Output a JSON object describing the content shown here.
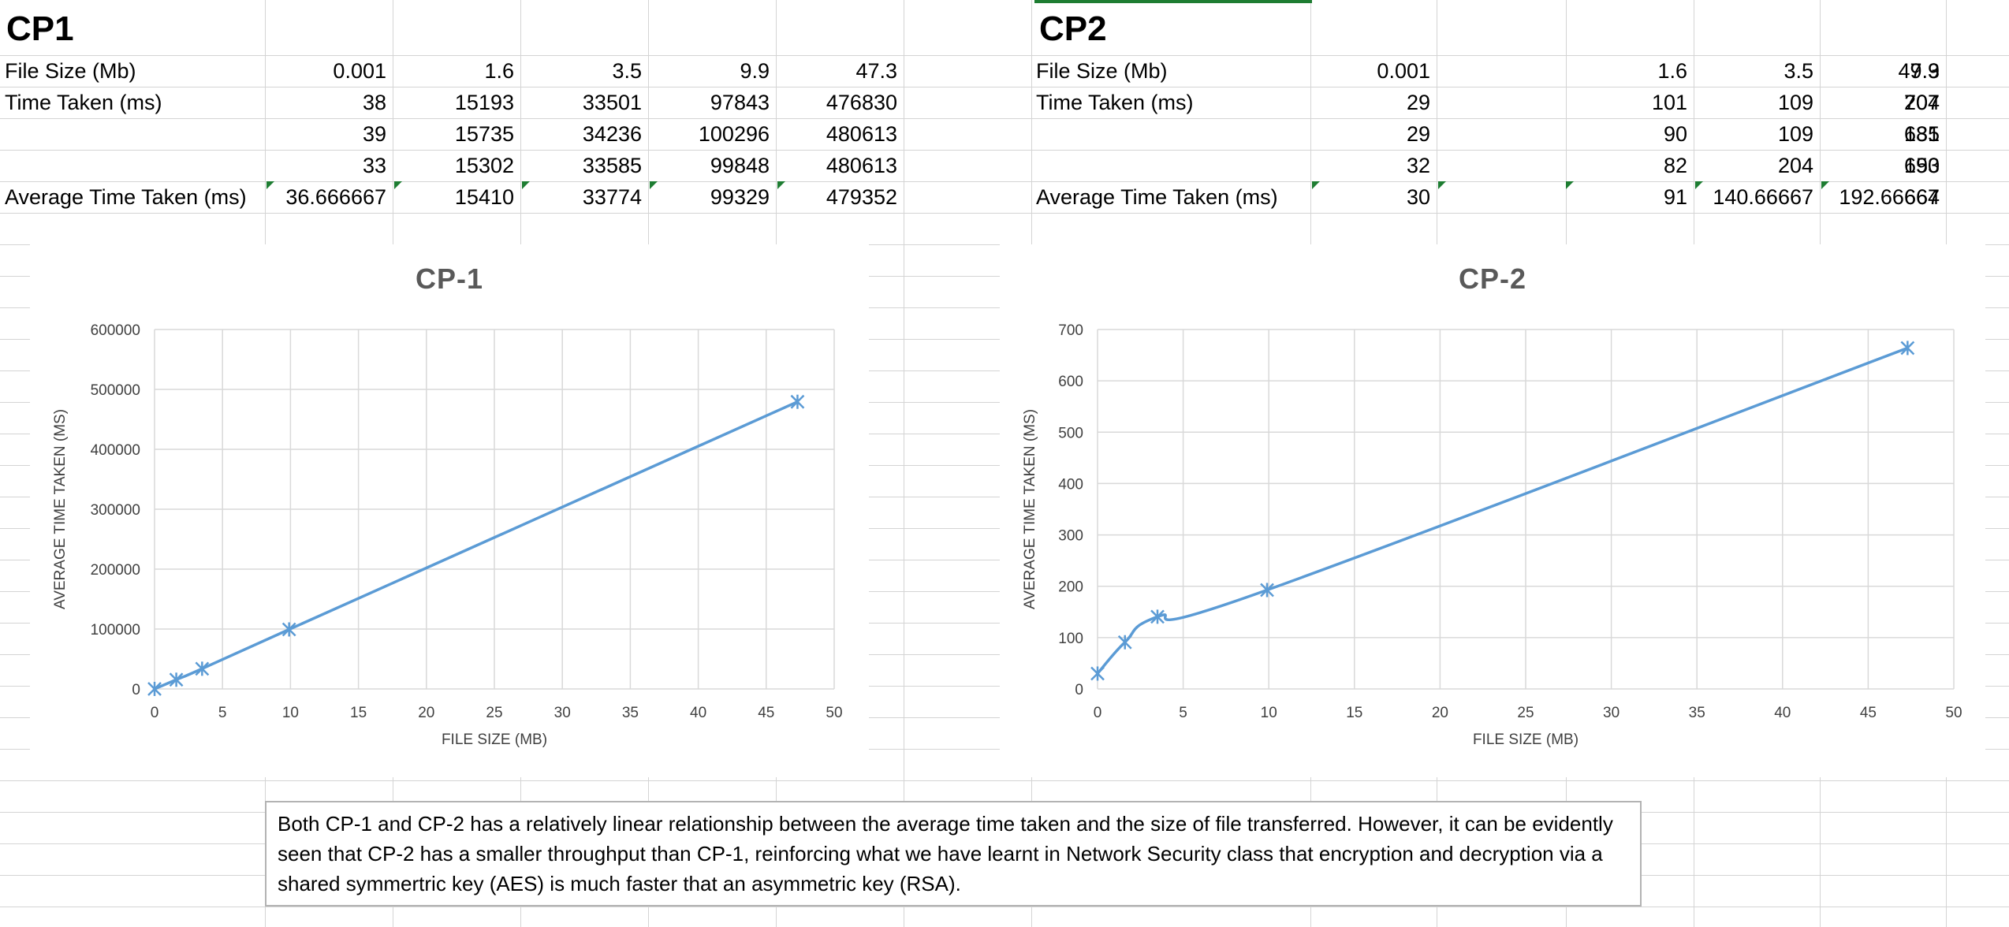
{
  "sheet": {
    "cp1": {
      "title": "CP1",
      "file_size_label": "File Size (Mb)",
      "time_label": "Time Taken (ms)",
      "avg_label": "Average Time Taken (ms)",
      "file_sizes": [
        "0.001",
        "1.6",
        "3.5",
        "9.9",
        "47.3"
      ],
      "time_rows": [
        [
          "38",
          "15193",
          "33501",
          "97843",
          "476830"
        ],
        [
          "39",
          "15735",
          "34236",
          "100296",
          "480613"
        ],
        [
          "33",
          "15302",
          "33585",
          "99848",
          "480613"
        ]
      ],
      "averages": [
        "36.666667",
        "15410",
        "33774",
        "99329",
        "479352"
      ]
    },
    "cp2": {
      "title": "CP2",
      "file_size_label": "File Size (Mb)",
      "time_label": "Time Taken (ms)",
      "avg_label": "Average Time Taken (ms)",
      "file_sizes": [
        "0.001",
        "1.6",
        "3.5",
        "9.9",
        "47.3"
      ],
      "time_rows": [
        [
          "29",
          "101",
          "109",
          "207",
          "704"
        ],
        [
          "29",
          "90",
          "109",
          "181",
          "635"
        ],
        [
          "32",
          "82",
          "204",
          "190",
          "653"
        ]
      ],
      "averages": [
        "30",
        "91",
        "140.66667",
        "192.66667",
        "664"
      ]
    }
  },
  "chart_data": [
    {
      "type": "scatter",
      "title": "CP-1",
      "xlabel": "FILE SIZE (MB)",
      "ylabel": "AVERAGE TIME TAKEN (MS)",
      "xlim": [
        0,
        50
      ],
      "ylim": [
        0,
        600000
      ],
      "xticks": [
        "0",
        "5",
        "10",
        "15",
        "20",
        "25",
        "30",
        "35",
        "40",
        "45",
        "50"
      ],
      "yticks": [
        "0",
        "100000",
        "200000",
        "300000",
        "400000",
        "500000",
        "600000"
      ],
      "grid": true,
      "smooth": true,
      "color": "#5b9bd5",
      "marker": "asterisk",
      "x": [
        0.001,
        1.6,
        3.5,
        9.9,
        47.3
      ],
      "y": [
        36.666667,
        15410,
        33774,
        99329,
        479352
      ]
    },
    {
      "type": "scatter",
      "title": "CP-2",
      "xlabel": "FILE SIZE (MB)",
      "ylabel": "AVERAGE TIME TAKEN (MS)",
      "xlim": [
        0,
        50
      ],
      "ylim": [
        0,
        700
      ],
      "xticks": [
        "0",
        "5",
        "10",
        "15",
        "20",
        "25",
        "30",
        "35",
        "40",
        "45",
        "50"
      ],
      "yticks": [
        "0",
        "100",
        "200",
        "300",
        "400",
        "500",
        "600",
        "700"
      ],
      "grid": true,
      "smooth": true,
      "color": "#5b9bd5",
      "marker": "asterisk",
      "x": [
        0.001,
        1.6,
        3.5,
        9.9,
        47.3
      ],
      "y": [
        30,
        91,
        140.66667,
        192.66667,
        664
      ]
    }
  ],
  "note": {
    "text": "Both CP-1 and CP-2 has a relatively linear relationship between the average time taken and the size of file transferred. However, it can be evidently seen that CP-2 has a smaller throughput than CP-1, reinforcing what we have learnt in Network Security class that encryption and decryption via a shared symmertric key (AES) is much faster that an asymmetric key (RSA)."
  },
  "colors": {
    "series": "#5b9bd5",
    "gridline": "#d4d4d4",
    "error_indicator": "#1e7d32"
  }
}
